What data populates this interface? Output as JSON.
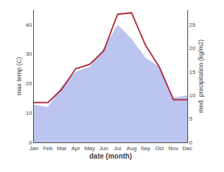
{
  "chart_data": {
    "type": "line",
    "xlabel": "date (month)",
    "ylabel": "max temp (C)",
    "y2label": "med. precipitation (kg/m2)",
    "categories": [
      "Jan",
      "Feb",
      "Mar",
      "Apr",
      "May",
      "Jun",
      "Jul",
      "Aug",
      "Sep",
      "Oct",
      "Nov",
      "Dec"
    ],
    "series": [
      {
        "type": "area",
        "axis": "y2",
        "color": "#bcc4f0",
        "values": [
          8.0,
          7.5,
          12.0,
          15.0,
          16.0,
          20.0,
          25.0,
          22.0,
          18.0,
          16.0,
          9.5,
          10.0
        ]
      },
      {
        "type": "line",
        "color": "#b03040",
        "values": [
          13.5,
          13.5,
          18.0,
          25.0,
          26.5,
          31.0,
          43.5,
          44.0,
          33.0,
          25.5,
          14.5,
          14.5
        ]
      }
    ],
    "ylim": [
      0,
      45
    ],
    "yticks": [
      0,
      10,
      20,
      30,
      40
    ],
    "y2lim": [
      0,
      28.125
    ],
    "y2ticks": [
      0,
      5,
      10,
      15,
      20,
      25
    ],
    "grid": false,
    "legend": false
  }
}
